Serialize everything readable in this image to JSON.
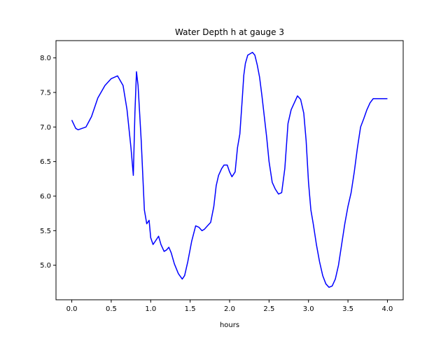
{
  "chart_data": {
    "type": "line",
    "title": "Water Depth h at gauge 3",
    "xlabel": "hours",
    "ylabel": "",
    "xlim": [
      -0.2,
      4.2
    ],
    "ylim": [
      4.5,
      8.25
    ],
    "grid": false,
    "legend": "none",
    "x_ticks": [
      0.0,
      0.5,
      1.0,
      1.5,
      2.0,
      2.5,
      3.0,
      3.5,
      4.0
    ],
    "x_tick_labels": [
      "0.0",
      "0.5",
      "1.0",
      "1.5",
      "2.0",
      "2.5",
      "3.0",
      "3.5",
      "4.0"
    ],
    "y_ticks": [
      5.0,
      5.5,
      6.0,
      6.5,
      7.0,
      7.5,
      8.0
    ],
    "y_tick_labels": [
      "5.0",
      "5.5",
      "6.0",
      "6.5",
      "7.0",
      "7.5",
      "8.0"
    ],
    "series": [
      {
        "name": "",
        "color": "#0000ff",
        "x": [
          0.0,
          0.05,
          0.08,
          0.18,
          0.25,
          0.33,
          0.42,
          0.5,
          0.58,
          0.65,
          0.7,
          0.75,
          0.78,
          0.8,
          0.82,
          0.84,
          0.88,
          0.92,
          0.95,
          0.98,
          1.0,
          1.03,
          1.06,
          1.1,
          1.13,
          1.17,
          1.2,
          1.23,
          1.26,
          1.3,
          1.35,
          1.4,
          1.43,
          1.47,
          1.52,
          1.57,
          1.61,
          1.65,
          1.68,
          1.72,
          1.76,
          1.8,
          1.83,
          1.86,
          1.9,
          1.93,
          1.97,
          2.0,
          2.03,
          2.07,
          2.1,
          2.13,
          2.16,
          2.18,
          2.2,
          2.23,
          2.26,
          2.29,
          2.32,
          2.35,
          2.38,
          2.41,
          2.44,
          2.47,
          2.5,
          2.54,
          2.58,
          2.62,
          2.66,
          2.7,
          2.74,
          2.78,
          2.82,
          2.86,
          2.9,
          2.94,
          2.97,
          3.0,
          3.03,
          3.06,
          3.1,
          3.14,
          3.18,
          3.22,
          3.26,
          3.3,
          3.34,
          3.38,
          3.42,
          3.46,
          3.5,
          3.54,
          3.58,
          3.62,
          3.66,
          3.7,
          3.74,
          3.78,
          3.82,
          3.86,
          3.9,
          3.94,
          3.98,
          4.0
        ],
        "y": [
          7.1,
          6.98,
          6.96,
          7.0,
          7.15,
          7.42,
          7.6,
          7.7,
          7.74,
          7.6,
          7.25,
          6.7,
          6.3,
          7.2,
          7.8,
          7.6,
          6.8,
          5.8,
          5.6,
          5.65,
          5.4,
          5.3,
          5.35,
          5.42,
          5.3,
          5.2,
          5.22,
          5.26,
          5.18,
          5.02,
          4.88,
          4.8,
          4.85,
          5.05,
          5.35,
          5.57,
          5.55,
          5.5,
          5.52,
          5.57,
          5.62,
          5.85,
          6.15,
          6.3,
          6.4,
          6.45,
          6.45,
          6.35,
          6.28,
          6.35,
          6.7,
          6.9,
          7.4,
          7.75,
          7.92,
          8.04,
          8.06,
          8.08,
          8.04,
          7.9,
          7.72,
          7.45,
          7.15,
          6.85,
          6.5,
          6.2,
          6.1,
          6.03,
          6.05,
          6.4,
          7.05,
          7.25,
          7.35,
          7.45,
          7.4,
          7.2,
          6.8,
          6.2,
          5.8,
          5.6,
          5.3,
          5.05,
          4.85,
          4.73,
          4.68,
          4.7,
          4.8,
          5.0,
          5.3,
          5.6,
          5.85,
          6.05,
          6.35,
          6.7,
          7.0,
          7.12,
          7.25,
          7.35,
          7.41,
          7.41,
          7.41,
          7.41,
          7.41,
          7.41
        ]
      }
    ]
  }
}
